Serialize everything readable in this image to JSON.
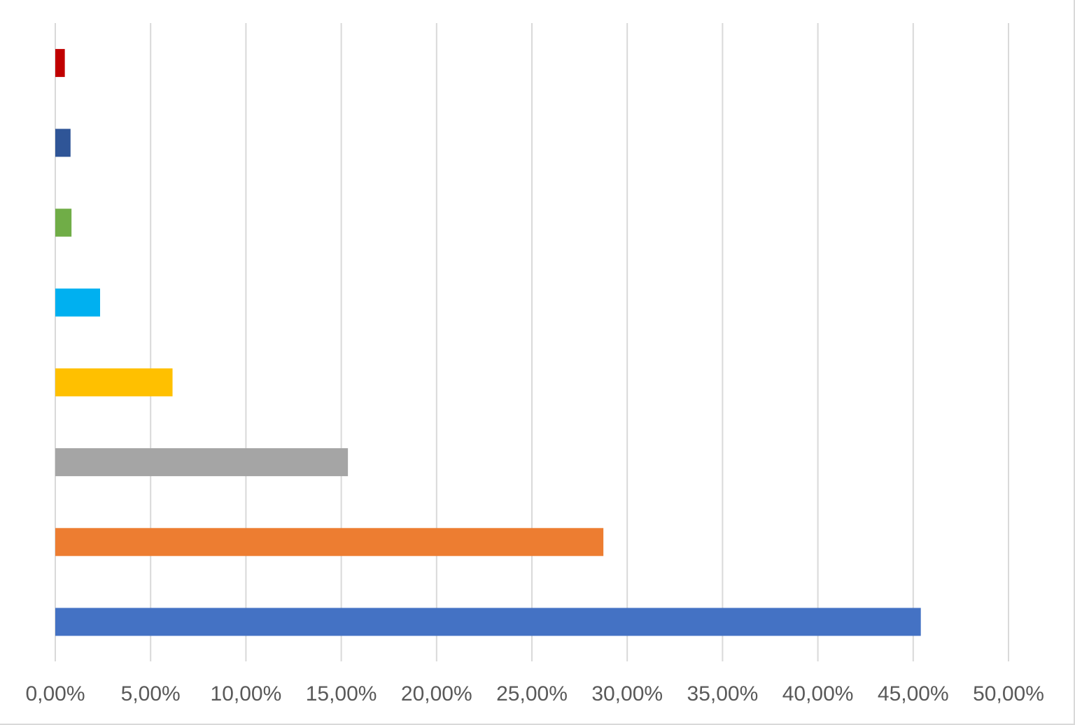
{
  "chart_data": {
    "type": "bar",
    "orientation": "horizontal",
    "title": "",
    "xlabel": "",
    "ylabel": "",
    "categories": [
      "",
      "",
      "",
      "",
      "",
      "",
      "",
      ""
    ],
    "values": [
      0.454,
      0.2875,
      0.1535,
      0.0615,
      0.0235,
      0.0085,
      0.008,
      0.005
    ],
    "bar_colors": [
      "#4472c4",
      "#ed7d31",
      "#a5a5a5",
      "#ffc000",
      "#00b0f0",
      "#70ad47",
      "#2f5597",
      "#c00000"
    ],
    "xlim": [
      0,
      0.5
    ],
    "x_ticks": [
      0,
      0.05,
      0.1,
      0.15,
      0.2,
      0.25,
      0.3,
      0.35,
      0.4,
      0.45,
      0.5
    ],
    "x_tick_labels": [
      "0,00%",
      "5,00%",
      "10,00%",
      "15,00%",
      "20,00%",
      "25,00%",
      "30,00%",
      "35,00%",
      "40,00%",
      "45,00%",
      "50,00%"
    ],
    "grid": "vertical",
    "legend": "none",
    "first_category_position": "bottom"
  }
}
